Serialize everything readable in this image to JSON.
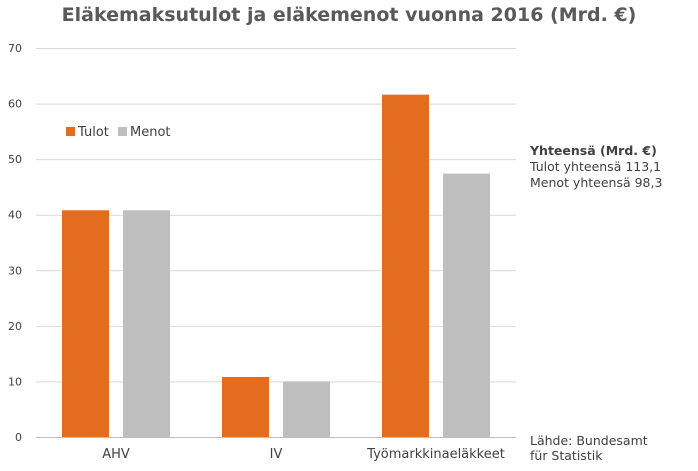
{
  "chart_data": {
    "type": "bar",
    "title": "Eläkemaksutulot ja eläkemenot vuonna 2016 (Mrd. €)",
    "categories": [
      "AHV",
      "IV",
      "Työmarkkinaeläkkeet"
    ],
    "series": [
      {
        "name": "Tulot",
        "values": [
          40.8,
          10.8,
          61.6
        ],
        "color": "#E46C1F"
      },
      {
        "name": "Menot",
        "values": [
          40.8,
          10.0,
          47.4
        ],
        "color": "#BFBFBF"
      }
    ],
    "ylim": [
      0,
      70
    ],
    "yticks": [
      0,
      10,
      20,
      30,
      40,
      50,
      60,
      70
    ],
    "grid": true,
    "legend": "top-left"
  },
  "summary": {
    "title": "Yhteensä (Mrd. €)",
    "income": "Tulot yhteensä 113,1",
    "expenses": "Menot yhteensä 98,3"
  },
  "source": {
    "line1": "Lähde: Bundesamt",
    "line2": "für Statistik"
  }
}
